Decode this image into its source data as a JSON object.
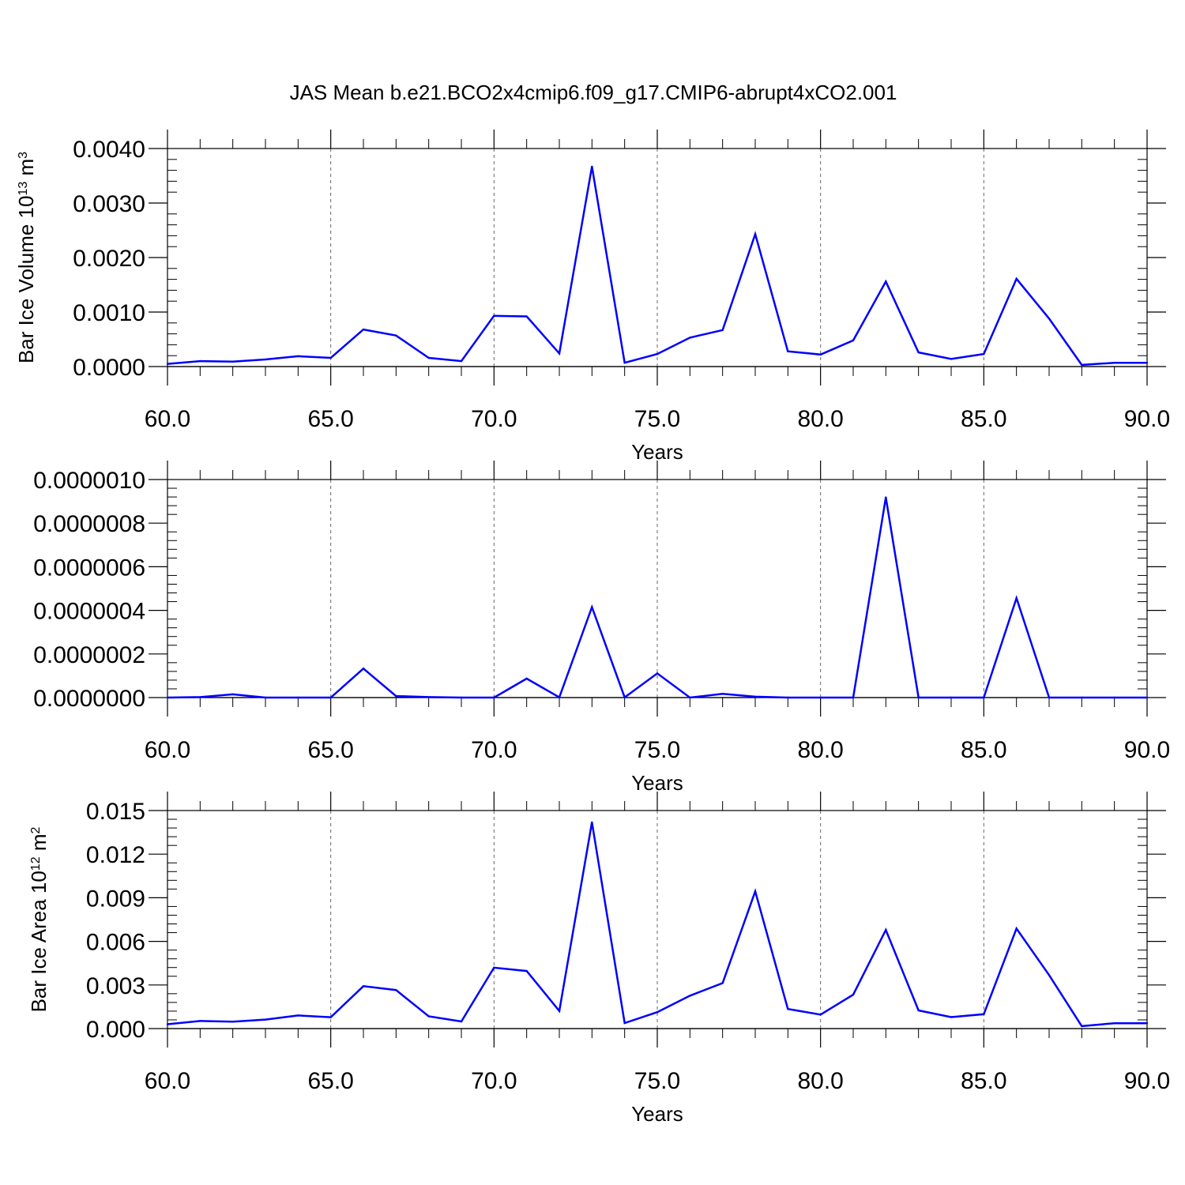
{
  "title": "JAS Mean b.e21.BCO2x4cmip6.f09_g17.CMIP6-abrupt4xCO2.001",
  "colors": {
    "series": "#0000ff",
    "axes": "#000000",
    "background": "#ffffff"
  },
  "chart_data": [
    {
      "type": "line",
      "xlabel": "Years",
      "ylabel": "Bar Ice Volume 10",
      "ylabel_sup": "13",
      "ylabel_unit": "m",
      "ylabel_unit_sup": "3",
      "xlim": [
        60,
        90
      ],
      "ylim": [
        0,
        0.004
      ],
      "x_ticks": [
        60,
        65,
        70,
        75,
        80,
        85,
        90
      ],
      "x_tick_labels": [
        "60.0",
        "65.0",
        "70.0",
        "75.0",
        "80.0",
        "85.0",
        "90.0"
      ],
      "y_ticks": [
        0,
        0.001,
        0.002,
        0.003,
        0.004
      ],
      "y_tick_labels": [
        "0.0000",
        "0.0010",
        "0.0020",
        "0.0030",
        "0.0040"
      ],
      "grid": "dashed vertical at major x ticks",
      "x": [
        60,
        61,
        62,
        63,
        64,
        65,
        66,
        67,
        68,
        69,
        70,
        71,
        72,
        73,
        74,
        75,
        76,
        77,
        78,
        79,
        80,
        81,
        82,
        83,
        84,
        85,
        86,
        87,
        88,
        89,
        90
      ],
      "values": [
        5e-05,
        0.0001,
        9e-05,
        0.00013,
        0.00019,
        0.00016,
        0.00068,
        0.00057,
        0.00016,
        0.0001,
        0.00093,
        0.00092,
        0.00024,
        0.00367,
        7e-05,
        0.00023,
        0.00053,
        0.00067,
        0.00243,
        0.00028,
        0.00022,
        0.00048,
        0.00156,
        0.00026,
        0.00014,
        0.00023,
        0.00161,
        0.00088,
        3e-05,
        7e-05,
        7e-05
      ]
    },
    {
      "type": "line",
      "xlabel": "Years",
      "ylabel": "",
      "xlim": [
        60,
        90
      ],
      "ylim": [
        0,
        1e-06
      ],
      "x_ticks": [
        60,
        65,
        70,
        75,
        80,
        85,
        90
      ],
      "x_tick_labels": [
        "60.0",
        "65.0",
        "70.0",
        "75.0",
        "80.0",
        "85.0",
        "90.0"
      ],
      "y_ticks": [
        0,
        2e-07,
        4e-07,
        6e-07,
        8e-07,
        1e-06
      ],
      "y_tick_labels": [
        "0.0000000",
        "0.0000002",
        "0.0000004",
        "0.0000006",
        "0.0000008",
        "0.0000010"
      ],
      "grid": "dashed vertical at major x ticks",
      "x": [
        60,
        61,
        62,
        63,
        64,
        65,
        66,
        67,
        68,
        69,
        70,
        71,
        72,
        73,
        74,
        75,
        76,
        77,
        78,
        79,
        80,
        81,
        82,
        83,
        84,
        85,
        86,
        87,
        88,
        89,
        90
      ],
      "values": [
        0,
        2e-09,
        1.5e-08,
        0,
        0,
        0,
        1.33e-07,
        7e-09,
        2e-09,
        0,
        0,
        8.7e-08,
        1e-09,
        4.15e-07,
        1e-09,
        1.11e-07,
        0,
        1.7e-08,
        4e-09,
        0,
        0,
        0,
        9.18e-07,
        0,
        0,
        0,
        4.56e-07,
        0,
        0,
        0,
        0
      ]
    },
    {
      "type": "line",
      "xlabel": "Years",
      "ylabel": "Bar Ice Area 10",
      "ylabel_sup": "12",
      "ylabel_unit": "m",
      "ylabel_unit_sup": "2",
      "xlim": [
        60,
        90
      ],
      "ylim": [
        0,
        0.015
      ],
      "x_ticks": [
        60,
        65,
        70,
        75,
        80,
        85,
        90
      ],
      "x_tick_labels": [
        "60.0",
        "65.0",
        "70.0",
        "75.0",
        "80.0",
        "85.0",
        "90.0"
      ],
      "y_ticks": [
        0,
        0.003,
        0.006,
        0.009,
        0.012,
        0.015
      ],
      "y_tick_labels": [
        "0.000",
        "0.003",
        "0.006",
        "0.009",
        "0.012",
        "0.015"
      ],
      "grid": "dashed vertical at major x ticks",
      "x": [
        60,
        61,
        62,
        63,
        64,
        65,
        66,
        67,
        68,
        69,
        70,
        71,
        72,
        73,
        74,
        75,
        76,
        77,
        78,
        79,
        80,
        81,
        82,
        83,
        84,
        85,
        86,
        87,
        88,
        89,
        90
      ],
      "values": [
        0.0003,
        0.00052,
        0.00048,
        0.00062,
        0.0009,
        0.00078,
        0.00292,
        0.00265,
        0.00084,
        0.00049,
        0.00419,
        0.00396,
        0.00121,
        0.01419,
        0.00038,
        0.00113,
        0.00226,
        0.00313,
        0.00944,
        0.00135,
        0.00096,
        0.00233,
        0.00679,
        0.00125,
        0.00079,
        0.00099,
        0.00688,
        0.00368,
        0.00017,
        0.00037,
        0.00037
      ]
    }
  ]
}
